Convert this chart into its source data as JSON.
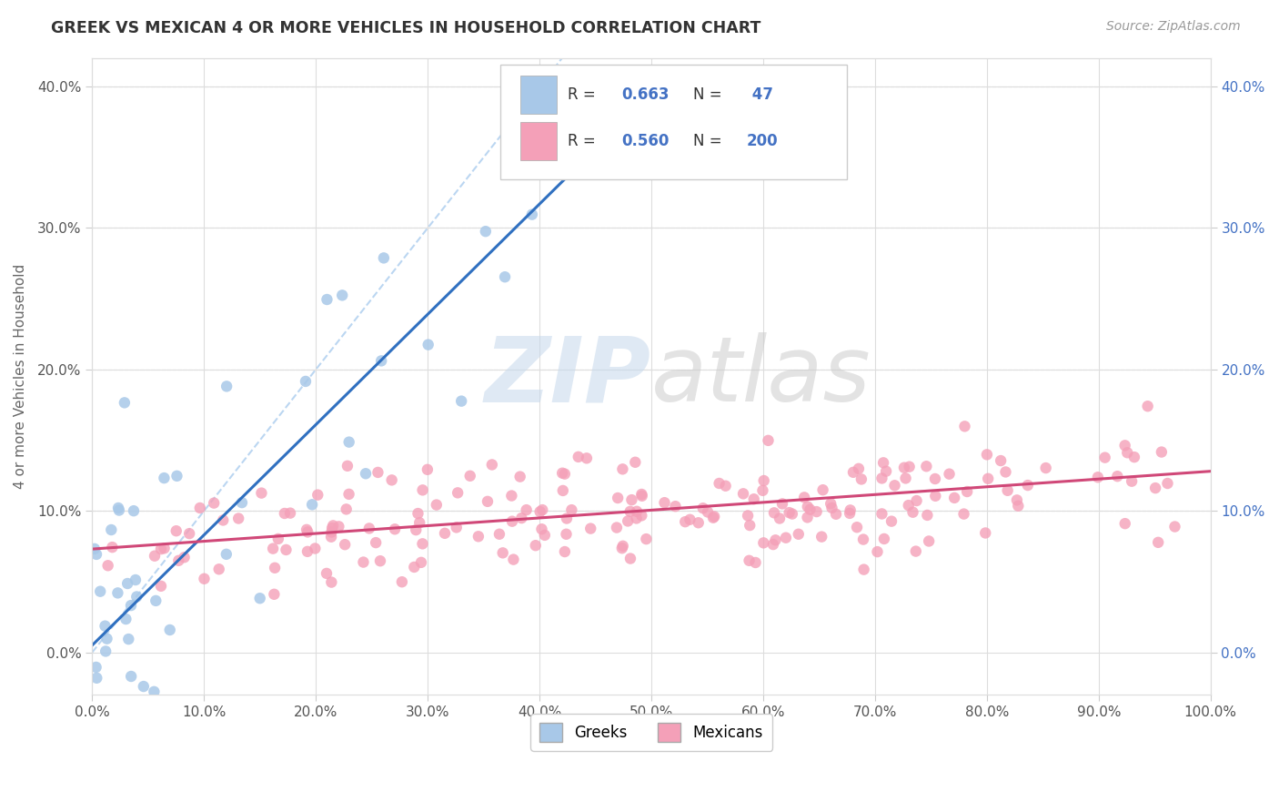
{
  "title": "GREEK VS MEXICAN 4 OR MORE VEHICLES IN HOUSEHOLD CORRELATION CHART",
  "source": "Source: ZipAtlas.com",
  "ylabel": "4 or more Vehicles in Household",
  "xlim": [
    0,
    1.0
  ],
  "ylim": [
    -0.03,
    0.42
  ],
  "greek_color": "#a8c8e8",
  "mexican_color": "#f4a0b8",
  "greek_line_color": "#3070c0",
  "mexican_line_color": "#d04878",
  "diag_color": "#aaccee",
  "greek_R": 0.663,
  "greek_N": 47,
  "mexican_R": 0.56,
  "mexican_N": 200,
  "legend_labels": [
    "Greeks",
    "Mexicans"
  ],
  "xticks": [
    0.0,
    0.1,
    0.2,
    0.3,
    0.4,
    0.5,
    0.6,
    0.7,
    0.8,
    0.9,
    1.0
  ],
  "xtick_labels": [
    "0.0%",
    "",
    "",
    "",
    "",
    "",
    "",
    "",
    "",
    "",
    "100.0%"
  ],
  "yticks": [
    0.0,
    0.1,
    0.2,
    0.3,
    0.4
  ],
  "ytick_labels": [
    "0.0%",
    "10.0%",
    "20.0%",
    "30.0%",
    "40.0%"
  ],
  "greek_slope": 0.78,
  "greek_intercept": 0.005,
  "mexican_slope": 0.055,
  "mexican_intercept": 0.073,
  "watermark_zip_color": "#b8cce4",
  "watermark_atlas_color": "#c8c8c8",
  "right_tick_color": "#4472c4",
  "legend_text_color": "#333333",
  "legend_value_color": "#4472c4"
}
